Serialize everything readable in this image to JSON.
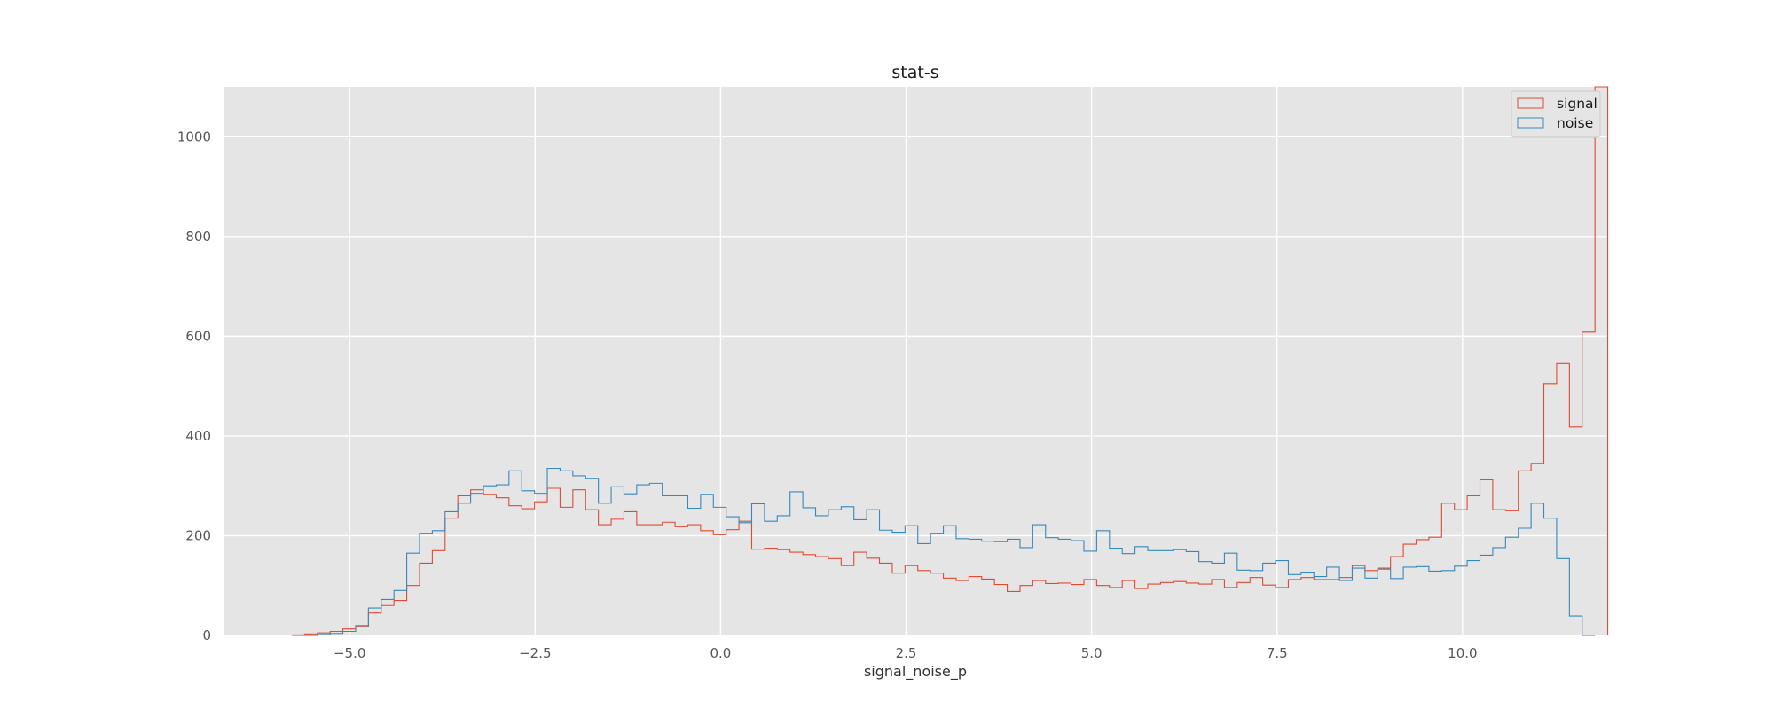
{
  "chart_data": {
    "type": "histogram",
    "title": "stat-s",
    "xlabel": "signal_noise_p",
    "ylabel": "",
    "xlim": [
      -6.7,
      11.95
    ],
    "ylim": [
      0,
      1100
    ],
    "grid": true,
    "legend_position": "top-right",
    "xticks": [
      -5.0,
      -2.5,
      0.0,
      2.5,
      5.0,
      7.5,
      10.0
    ],
    "xtick_labels": [
      "−5.0",
      "−2.5",
      "0.0",
      "2.5",
      "5.0",
      "7.5",
      "10.0"
    ],
    "yticks": [
      0,
      200,
      400,
      600,
      800,
      1000
    ],
    "ytick_labels": [
      "0",
      "200",
      "400",
      "600",
      "800",
      "1000"
    ],
    "bin_start": -5.78,
    "bin_width": 0.1722,
    "series": [
      {
        "name": "signal",
        "color": "#E24A33",
        "values": [
          1,
          3,
          5,
          8,
          13,
          18,
          45,
          60,
          70,
          100,
          145,
          170,
          235,
          280,
          292,
          283,
          276,
          260,
          254,
          268,
          295,
          257,
          292,
          252,
          222,
          233,
          248,
          222,
          222,
          227,
          218,
          222,
          210,
          202,
          212,
          229,
          173,
          175,
          172,
          167,
          162,
          158,
          154,
          140,
          167,
          155,
          145,
          125,
          140,
          130,
          125,
          115,
          110,
          118,
          113,
          102,
          88,
          100,
          110,
          104,
          105,
          102,
          112,
          100,
          96,
          110,
          94,
          103,
          106,
          108,
          105,
          103,
          112,
          96,
          106,
          116,
          101,
          96,
          112,
          116,
          112,
          112,
          116,
          140,
          130,
          135,
          158,
          183,
          192,
          197,
          265,
          252,
          280,
          312,
          252,
          250,
          330,
          345,
          505,
          545,
          418,
          608,
          1100
        ]
      },
      {
        "name": "noise",
        "color": "#348ABD",
        "values": [
          0,
          0,
          2,
          4,
          8,
          20,
          55,
          72,
          90,
          165,
          205,
          210,
          248,
          265,
          285,
          300,
          302,
          330,
          290,
          285,
          335,
          330,
          320,
          315,
          265,
          298,
          284,
          302,
          305,
          280,
          280,
          255,
          283,
          257,
          238,
          226,
          264,
          229,
          240,
          288,
          256,
          240,
          252,
          258,
          232,
          252,
          211,
          207,
          220,
          184,
          205,
          220,
          194,
          193,
          189,
          188,
          193,
          176,
          222,
          196,
          193,
          190,
          169,
          210,
          175,
          164,
          178,
          170,
          170,
          172,
          168,
          148,
          145,
          165,
          131,
          130,
          145,
          150,
          122,
          127,
          118,
          137,
          110,
          135,
          115,
          133,
          114,
          137,
          138,
          129,
          130,
          139,
          150,
          161,
          176,
          197,
          215,
          265,
          235,
          154,
          39,
          0
        ]
      }
    ]
  }
}
